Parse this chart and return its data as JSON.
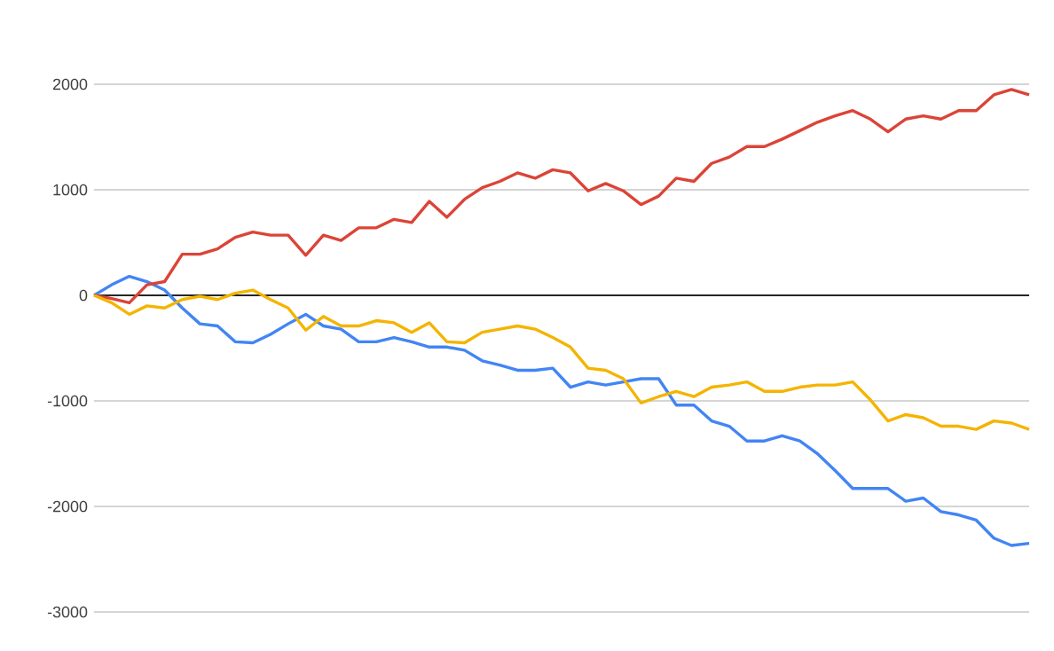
{
  "chart_data": {
    "type": "line",
    "categories": [
      null,
      null,
      null,
      null,
      null,
      null,
      null,
      null,
      null,
      null,
      null,
      null,
      null,
      null,
      null,
      null,
      null,
      null,
      null,
      null,
      null,
      null,
      null,
      null,
      null,
      null,
      null,
      null,
      null,
      null,
      null,
      null,
      null,
      null,
      null,
      null,
      null,
      null,
      null,
      null,
      null,
      null,
      null,
      null,
      null,
      null,
      null,
      null,
      null,
      null,
      null,
      null,
      null,
      null
    ],
    "series": [
      {
        "color": "#4285f4",
        "values": [
          0,
          100,
          180,
          130,
          50,
          -120,
          -270,
          -290,
          -440,
          -450,
          -370,
          -270,
          -180,
          -290,
          -320,
          -440,
          -440,
          -400,
          -440,
          -490,
          -490,
          -520,
          -620,
          -660,
          -710,
          -710,
          -690,
          -870,
          -820,
          -850,
          -820,
          -790,
          -790,
          -1040,
          -1040,
          -1190,
          -1240,
          -1380,
          -1380,
          -1330,
          -1380,
          -1500,
          -1660,
          -1830,
          -1830,
          -1830,
          -1950,
          -1920,
          -2050,
          -2080,
          -2130,
          -2300,
          -2370,
          -2350
        ]
      },
      {
        "color": "#db4437",
        "values": [
          0,
          -30,
          -70,
          100,
          130,
          390,
          390,
          440,
          550,
          600,
          570,
          570,
          380,
          570,
          520,
          640,
          640,
          720,
          690,
          890,
          740,
          910,
          1020,
          1080,
          1160,
          1110,
          1190,
          1160,
          990,
          1060,
          990,
          860,
          940,
          1110,
          1080,
          1250,
          1310,
          1410,
          1410,
          1480,
          1560,
          1640,
          1700,
          1750,
          1670,
          1550,
          1670,
          1700,
          1670,
          1750,
          1750,
          1900,
          1950,
          1900
        ]
      },
      {
        "color": "#f4b400",
        "values": [
          0,
          -70,
          -180,
          -100,
          -120,
          -40,
          -10,
          -40,
          20,
          50,
          -40,
          -120,
          -330,
          -200,
          -290,
          -290,
          -240,
          -260,
          -350,
          -260,
          -440,
          -450,
          -350,
          -320,
          -290,
          -320,
          -400,
          -490,
          -690,
          -710,
          -790,
          -1020,
          -960,
          -910,
          -960,
          -870,
          -850,
          -820,
          -910,
          -910,
          -870,
          -850,
          -850,
          -820,
          -990,
          -1190,
          -1130,
          -1160,
          -1240,
          -1240,
          -1270,
          -1190,
          -1210,
          -1270
        ]
      }
    ],
    "ylim": [
      -3000,
      2000
    ],
    "yticks": [
      -3000,
      -2000,
      -1000,
      0,
      1000,
      2000
    ],
    "grid": "y",
    "marker": "none",
    "line_style": "solid"
  }
}
